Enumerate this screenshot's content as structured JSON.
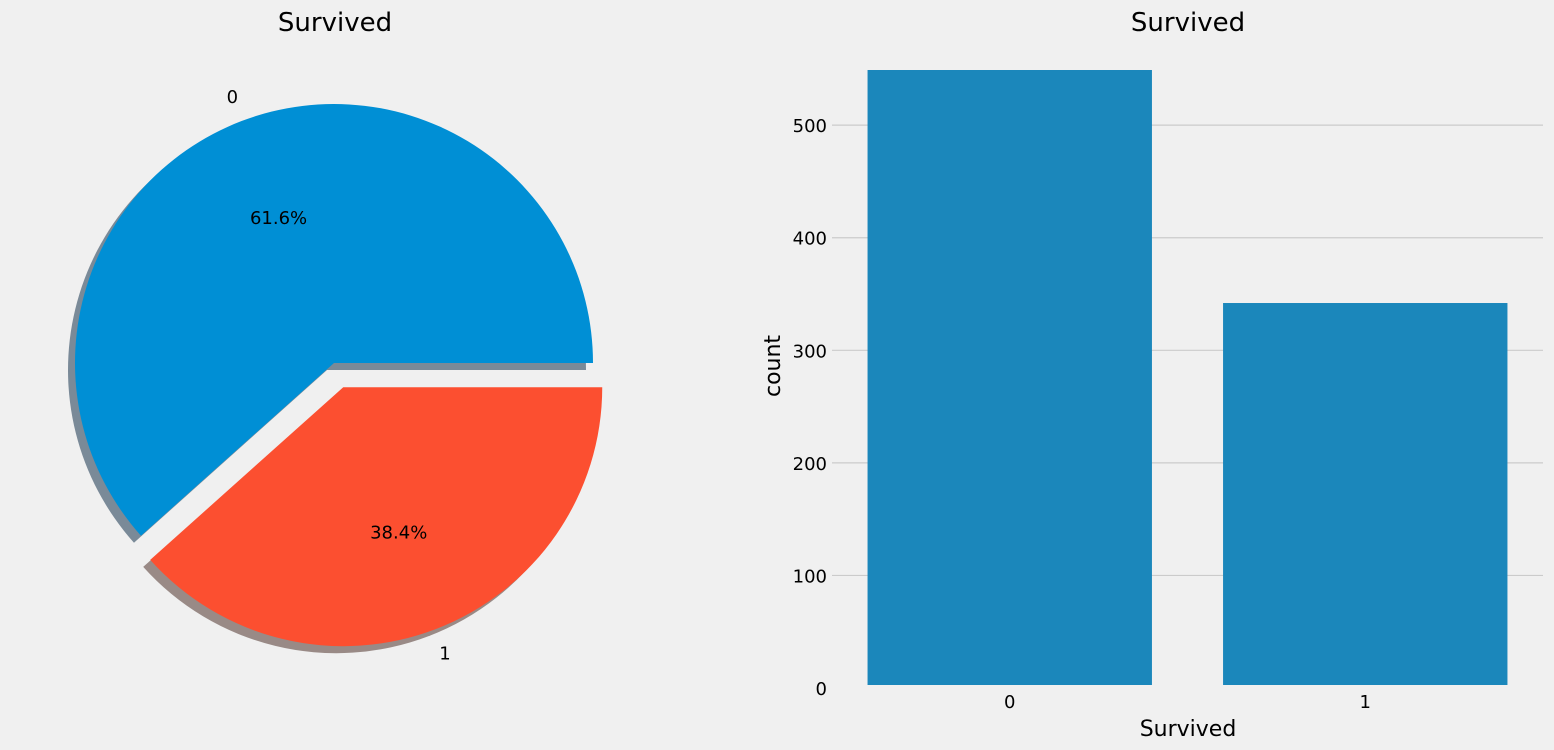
{
  "chart_data": [
    {
      "type": "pie",
      "title": "Survived",
      "labels": [
        "0",
        "1"
      ],
      "values": [
        549,
        342
      ],
      "percent_labels": [
        "61.6%",
        "38.4%"
      ],
      "colors": [
        "#008fd5",
        "#fc4f30"
      ],
      "explode": [
        0,
        0.1
      ],
      "shadow": true
    },
    {
      "type": "bar",
      "title": "Survived",
      "categories": [
        "0",
        "1"
      ],
      "values": [
        549,
        342
      ],
      "xlabel": "Survived",
      "ylabel": "count",
      "ylim": [
        0,
        549
      ],
      "yticks": [
        "0",
        "100",
        "200",
        "300",
        "400",
        "500"
      ],
      "color": "#1b87bb",
      "grid": "horizontal"
    }
  ]
}
